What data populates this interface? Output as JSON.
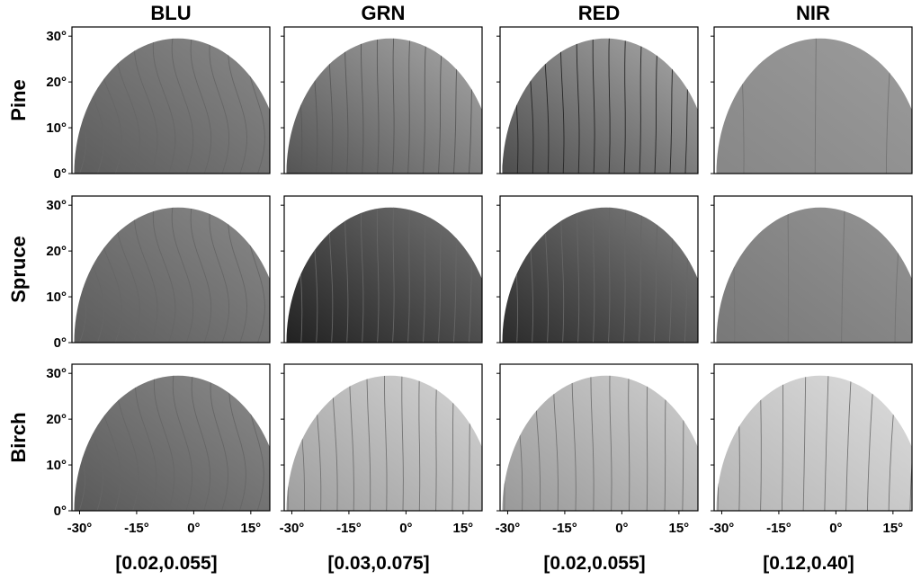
{
  "chart_data": {
    "type": "contour",
    "columns": [
      "BLU",
      "GRN",
      "RED",
      "NIR"
    ],
    "rows": [
      "Pine",
      "Spruce",
      "Birch"
    ],
    "x_ticks": [
      "-30°",
      "-15°",
      "0°",
      "15°"
    ],
    "x_tick_values": [
      -30,
      -15,
      0,
      15
    ],
    "y_ticks": [
      "0°",
      "10°",
      "20°",
      "30°"
    ],
    "y_tick_values": [
      0,
      10,
      20,
      30
    ],
    "xlim": [
      -32,
      20
    ],
    "ylim": [
      0,
      32
    ],
    "ranges": [
      "[0.02,0.055]",
      "[0.03,0.075]",
      "[0.02,0.055]",
      "[0.12,0.40]"
    ],
    "panels": [
      [
        {
          "base": 0.45,
          "gx": 0.18,
          "gy": 0.0,
          "wave": 0.55,
          "levels": 12,
          "dark": 0.4
        },
        {
          "base": 0.52,
          "gx": 0.3,
          "gy": 0.04,
          "wave": 0.06,
          "levels": 14,
          "dark": 0.35
        },
        {
          "base": 0.5,
          "gx": 0.36,
          "gy": 0.02,
          "wave": 0.05,
          "levels": 14,
          "dark": 0.15
        },
        {
          "base": 0.58,
          "gx": 0.06,
          "gy": 0.02,
          "wave": 0.0,
          "levels": 3,
          "dark": 0.45
        }
      ],
      [
        {
          "base": 0.45,
          "gx": 0.18,
          "gy": 0.0,
          "wave": 0.55,
          "levels": 12,
          "dark": 0.4
        },
        {
          "base": 0.32,
          "gx": 0.3,
          "gy": 0.04,
          "wave": 0.06,
          "levels": 14,
          "dark": 0.4
        },
        {
          "base": 0.36,
          "gx": 0.3,
          "gy": 0.04,
          "wave": 0.05,
          "levels": 14,
          "dark": 0.4
        },
        {
          "base": 0.54,
          "gx": 0.08,
          "gy": 0.03,
          "wave": 0.0,
          "levels": 4,
          "dark": 0.45
        }
      ],
      [
        {
          "base": 0.45,
          "gx": 0.2,
          "gy": 0.0,
          "wave": 0.5,
          "levels": 12,
          "dark": 0.4
        },
        {
          "base": 0.72,
          "gx": 0.2,
          "gy": -0.02,
          "wave": 0.04,
          "levels": 13,
          "dark": 0.45
        },
        {
          "base": 0.7,
          "gx": 0.2,
          "gy": -0.02,
          "wave": 0.04,
          "levels": 12,
          "dark": 0.45
        },
        {
          "base": 0.82,
          "gx": 0.1,
          "gy": 0.06,
          "wave": 0.0,
          "levels": 10,
          "dark": 0.45
        }
      ]
    ]
  }
}
